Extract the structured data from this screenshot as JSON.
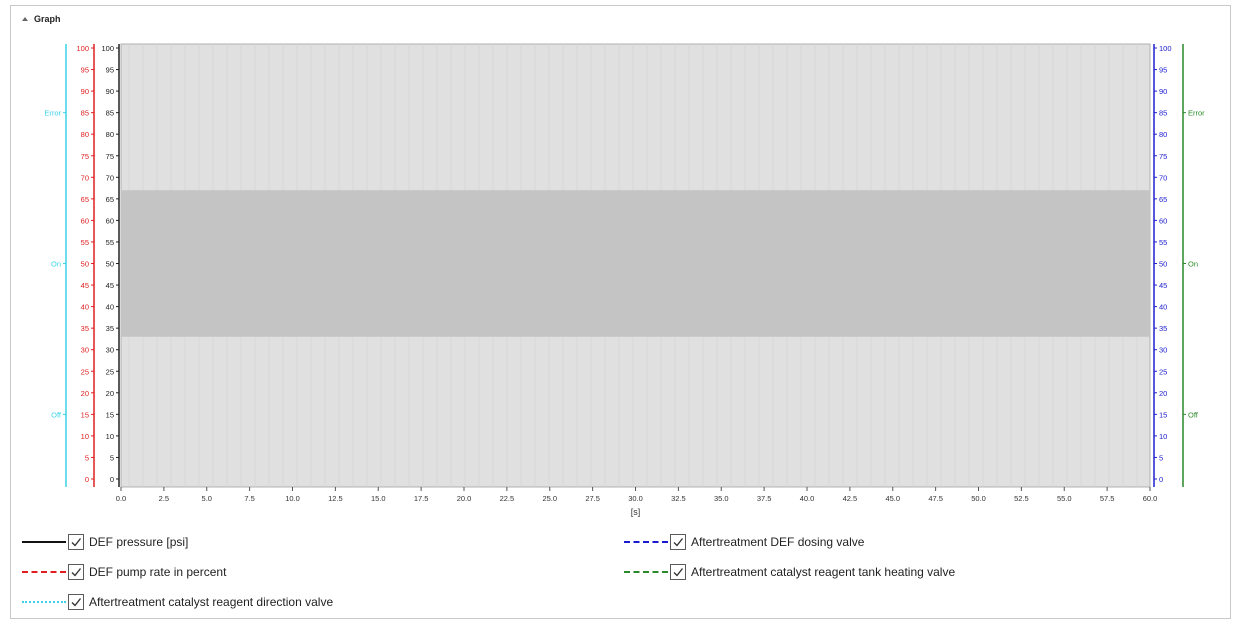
{
  "panel": {
    "title": "Graph",
    "collapse_icon": "caret-up-icon"
  },
  "chart_data": {
    "type": "line",
    "x": {
      "label": "[s]",
      "range": [
        0,
        60
      ],
      "ticks": [
        "0.0",
        "2.5",
        "5.0",
        "7.5",
        "10.0",
        "12.5",
        "15.0",
        "17.5",
        "20.0",
        "22.5",
        "25.0",
        "27.5",
        "30.0",
        "32.5",
        "35.0",
        "37.5",
        "40.0",
        "42.5",
        "45.0",
        "47.5",
        "50.0",
        "52.5",
        "55.0",
        "57.5",
        "60.0"
      ]
    },
    "axes": [
      {
        "id": "cyan-left",
        "color": "#3ad4e8",
        "side": "left",
        "ticks": [
          [
            "Error",
            85
          ],
          [
            "On",
            50
          ],
          [
            "Off",
            15
          ]
        ]
      },
      {
        "id": "red-left",
        "color": "#e02020",
        "side": "left",
        "range": [
          0,
          100
        ],
        "ticks": [
          "0",
          "5",
          "10",
          "15",
          "20",
          "25",
          "30",
          "35",
          "40",
          "45",
          "50",
          "55",
          "60",
          "65",
          "70",
          "75",
          "80",
          "85",
          "90",
          "95",
          "100"
        ]
      },
      {
        "id": "black-left",
        "color": "#222222",
        "side": "left",
        "range": [
          0,
          100
        ],
        "ticks": [
          "0",
          "5",
          "10",
          "15",
          "20",
          "25",
          "30",
          "35",
          "40",
          "45",
          "50",
          "55",
          "60",
          "65",
          "70",
          "75",
          "80",
          "85",
          "90",
          "95",
          "100"
        ]
      },
      {
        "id": "blue-right",
        "color": "#2020d0",
        "side": "right",
        "range": [
          0,
          100
        ],
        "ticks": [
          "0",
          "5",
          "10",
          "15",
          "20",
          "25",
          "30",
          "35",
          "40",
          "45",
          "50",
          "55",
          "60",
          "65",
          "70",
          "75",
          "80",
          "85",
          "90",
          "95",
          "100"
        ]
      },
      {
        "id": "green-right",
        "color": "#2a8a2a",
        "side": "right",
        "ticks": [
          [
            "Error",
            85
          ],
          [
            "On",
            50
          ],
          [
            "Off",
            15
          ]
        ]
      }
    ],
    "shaded_band": {
      "y_from": 33,
      "y_to": 67,
      "color": "#c4c4c4"
    },
    "plot_background": "#e0e0e0",
    "series": []
  },
  "legend": [
    {
      "label": "DEF pressure [psi]",
      "color": "#111111",
      "dash": "solid",
      "checked": true
    },
    {
      "label": "Aftertreatment DEF dosing valve",
      "color": "#1a1ad0",
      "dash": "dashed",
      "checked": true
    },
    {
      "label": "DEF pump rate in percent",
      "color": "#e02020",
      "dash": "dashed",
      "checked": true
    },
    {
      "label": "Aftertreatment catalyst reagent tank heating valve",
      "color": "#2a8a2a",
      "dash": "dashdot",
      "checked": true
    },
    {
      "label": "Aftertreatment catalyst reagent direction valve",
      "color": "#3ad4e8",
      "dash": "dotted",
      "checked": true
    }
  ]
}
